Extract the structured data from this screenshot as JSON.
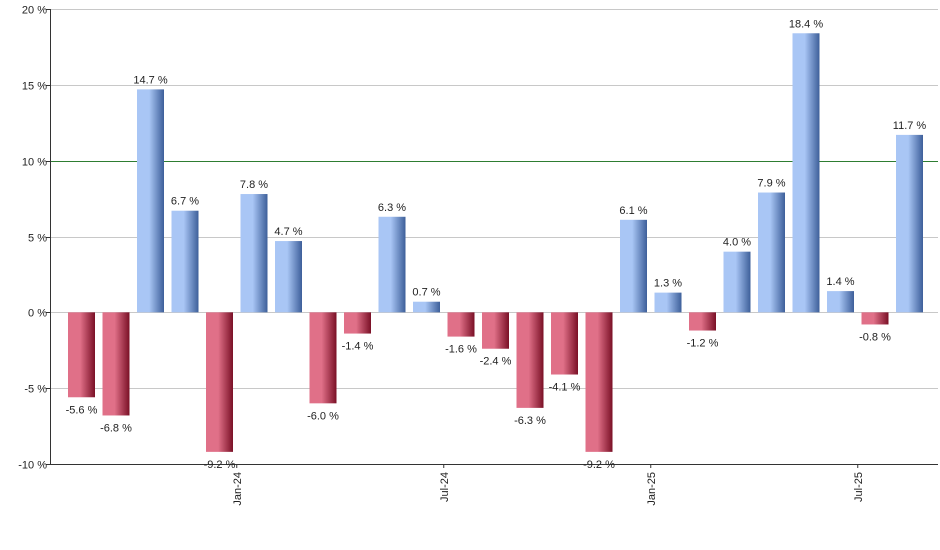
{
  "chart_data": {
    "type": "bar",
    "title": "",
    "xlabel": "",
    "ylabel": "",
    "ylim": [
      -10,
      20
    ],
    "y_ticks": [
      -10,
      -5,
      0,
      5,
      10,
      15,
      20
    ],
    "y_tick_labels": [
      "-10 %",
      "-5 %",
      "0 %",
      "5 %",
      "10 %",
      "15 %",
      "20 %"
    ],
    "grid": true,
    "reference_line": {
      "value": 10,
      "color": "#2e7d32"
    },
    "x_tick_labels": [
      {
        "label": "Jan-24",
        "after_bar": 4
      },
      {
        "label": "Jul-24",
        "after_bar": 10
      },
      {
        "label": "Jan-25",
        "after_bar": 16
      },
      {
        "label": "Jul-25",
        "after_bar": 22
      }
    ],
    "values": [
      -5.6,
      -6.8,
      14.7,
      6.7,
      -9.2,
      7.8,
      4.7,
      -6.0,
      -1.4,
      6.3,
      0.7,
      -1.6,
      -2.4,
      -6.3,
      -4.1,
      -9.2,
      6.1,
      1.3,
      -1.2,
      4.0,
      7.9,
      18.4,
      1.4,
      -0.8,
      11.7
    ],
    "value_labels": [
      "-5.6 %",
      "-6.8 %",
      "14.7 %",
      "6.7 %",
      "-9.2 %",
      "7.8 %",
      "4.7 %",
      "-6.0 %",
      "-1.4 %",
      "6.3 %",
      "0.7 %",
      "-1.6 %",
      "-2.4 %",
      "-6.3 %",
      "-4.1 %",
      "-9.2 %",
      "6.1 %",
      "1.3 %",
      "-1.2 %",
      "4.0 %",
      "7.9 %",
      "18.4 %",
      "1.4 %",
      "-0.8 %",
      "11.7 %"
    ],
    "colors": {
      "positive_light": "#a9c6f5",
      "positive_dark": "#3d5f9a",
      "negative_light": "#e07088",
      "negative_dark": "#7a1026",
      "grid": "#c8c8c8",
      "axis": "#333333"
    }
  }
}
